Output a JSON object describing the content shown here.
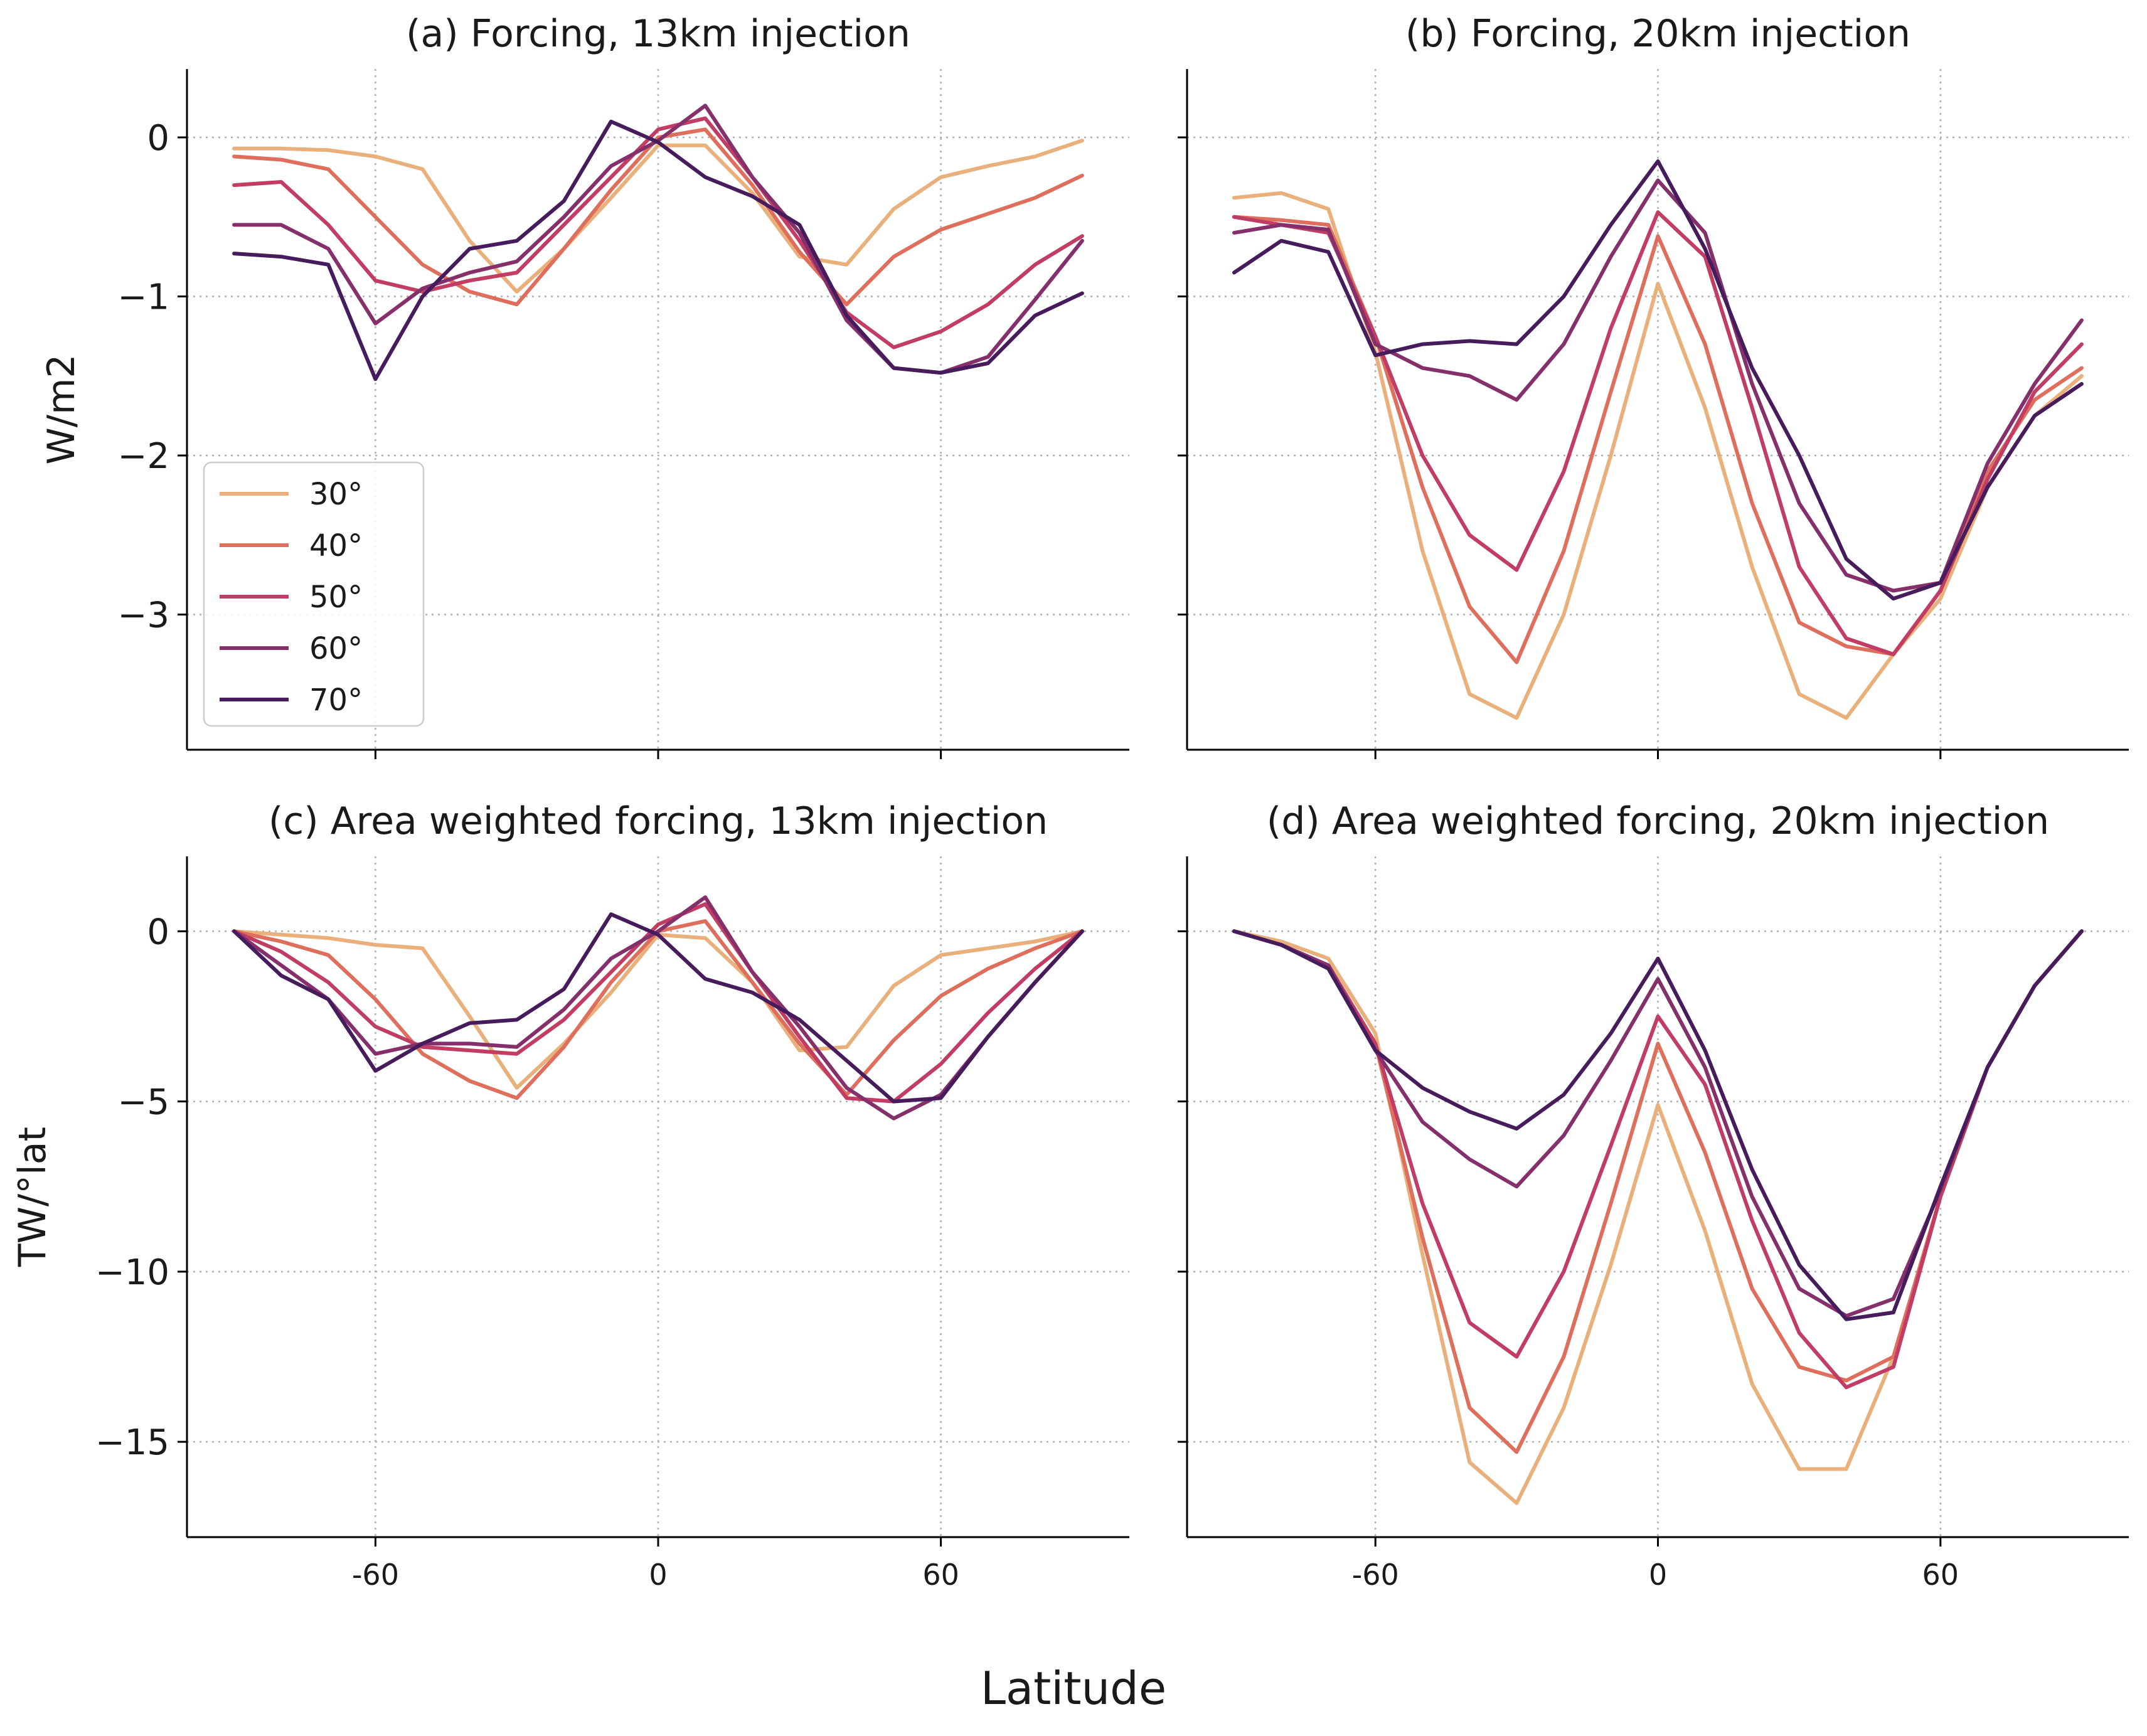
{
  "figure": {
    "xlabel": "Latitude",
    "colors": {
      "30°": "#e9b07c",
      "40°": "#de6f5c",
      "50°": "#c13d63",
      "60°": "#85306b",
      "70°": "#461c5c"
    },
    "legend_location": "lower-left of panel (a)"
  },
  "chart_data": [
    {
      "type": "line",
      "title": "(a) Forcing, 13km injection",
      "xlabel": "",
      "ylabel": "W/m2",
      "xlim": [
        -100,
        100
      ],
      "ylim": [
        -3.85,
        0.43
      ],
      "xticks": [
        -60,
        0,
        60
      ],
      "xtick_labels": [
        "-60",
        "0",
        "60"
      ],
      "yticks": [
        0,
        -1,
        -2,
        -3
      ],
      "ytick_labels": [
        "0",
        "−1",
        "−2",
        "−3"
      ],
      "show_xtick_labels": false,
      "show_ytick_labels": true,
      "grid": true,
      "legend": true,
      "x": [
        -90,
        -80,
        -70,
        -60,
        -50,
        -40,
        -30,
        -20,
        -10,
        0,
        10,
        20,
        30,
        40,
        50,
        60,
        70,
        80,
        90
      ],
      "series": [
        {
          "name": "30°",
          "color": "#e9b07c",
          "values": [
            -0.07,
            -0.07,
            -0.08,
            -0.12,
            -0.2,
            -0.65,
            -0.97,
            -0.7,
            -0.38,
            -0.05,
            -0.05,
            -0.35,
            -0.75,
            -0.8,
            -0.45,
            -0.25,
            -0.18,
            -0.12,
            -0.02
          ]
        },
        {
          "name": "40°",
          "color": "#de6f5c",
          "values": [
            -0.12,
            -0.14,
            -0.2,
            -0.5,
            -0.8,
            -0.97,
            -1.05,
            -0.7,
            -0.33,
            0.0,
            0.05,
            -0.3,
            -0.72,
            -1.05,
            -0.75,
            -0.58,
            -0.48,
            -0.38,
            -0.24
          ]
        },
        {
          "name": "50°",
          "color": "#c13d63",
          "values": [
            -0.3,
            -0.28,
            -0.55,
            -0.9,
            -0.97,
            -0.9,
            -0.85,
            -0.55,
            -0.25,
            0.05,
            0.12,
            -0.25,
            -0.65,
            -1.1,
            -1.32,
            -1.22,
            -1.05,
            -0.8,
            -0.62
          ]
        },
        {
          "name": "60°",
          "color": "#85306b",
          "values": [
            -0.55,
            -0.55,
            -0.7,
            -1.17,
            -0.95,
            -0.85,
            -0.78,
            -0.5,
            -0.18,
            -0.02,
            0.2,
            -0.25,
            -0.6,
            -1.15,
            -1.45,
            -1.48,
            -1.38,
            -1.02,
            -0.65
          ]
        },
        {
          "name": "70°",
          "color": "#461c5c",
          "values": [
            -0.73,
            -0.75,
            -0.8,
            -1.52,
            -1.0,
            -0.7,
            -0.65,
            -0.4,
            0.1,
            -0.03,
            -0.25,
            -0.37,
            -0.55,
            -1.12,
            -1.45,
            -1.48,
            -1.42,
            -1.12,
            -0.98
          ]
        }
      ]
    },
    {
      "type": "line",
      "title": "(b) Forcing, 20km injection",
      "xlabel": "",
      "ylabel": "",
      "xlim": [
        -100,
        100
      ],
      "ylim": [
        -3.85,
        0.43
      ],
      "xticks": [
        -60,
        0,
        60
      ],
      "xtick_labels": [
        "-60",
        "0",
        "60"
      ],
      "yticks": [
        0,
        -1,
        -2,
        -3
      ],
      "ytick_labels": [
        "0",
        "−1",
        "−2",
        "−3"
      ],
      "show_xtick_labels": false,
      "show_ytick_labels": false,
      "grid": true,
      "legend": false,
      "x": [
        -90,
        -80,
        -70,
        -60,
        -50,
        -40,
        -30,
        -20,
        -10,
        0,
        10,
        20,
        30,
        40,
        50,
        60,
        70,
        80,
        90
      ],
      "series": [
        {
          "name": "30°",
          "color": "#e9b07c",
          "values": [
            -0.38,
            -0.35,
            -0.45,
            -1.35,
            -2.6,
            -3.5,
            -3.65,
            -3.0,
            -2.0,
            -0.92,
            -1.7,
            -2.7,
            -3.5,
            -3.65,
            -3.25,
            -2.9,
            -2.2,
            -1.75,
            -1.5
          ]
        },
        {
          "name": "40°",
          "color": "#de6f5c",
          "values": [
            -0.5,
            -0.52,
            -0.55,
            -1.25,
            -2.2,
            -2.95,
            -3.3,
            -2.6,
            -1.6,
            -0.62,
            -1.3,
            -2.3,
            -3.05,
            -3.2,
            -3.25,
            -2.85,
            -2.1,
            -1.65,
            -1.45
          ]
        },
        {
          "name": "50°",
          "color": "#c13d63",
          "values": [
            -0.5,
            -0.55,
            -0.6,
            -1.25,
            -2.0,
            -2.5,
            -2.72,
            -2.1,
            -1.2,
            -0.47,
            -0.75,
            -1.7,
            -2.7,
            -3.15,
            -3.25,
            -2.85,
            -2.15,
            -1.6,
            -1.3
          ]
        },
        {
          "name": "60°",
          "color": "#85306b",
          "values": [
            -0.6,
            -0.55,
            -0.58,
            -1.3,
            -1.45,
            -1.5,
            -1.65,
            -1.3,
            -0.75,
            -0.27,
            -0.6,
            -1.55,
            -2.3,
            -2.75,
            -2.85,
            -2.8,
            -2.05,
            -1.55,
            -1.15
          ]
        },
        {
          "name": "70°",
          "color": "#461c5c",
          "values": [
            -0.85,
            -0.65,
            -0.72,
            -1.37,
            -1.3,
            -1.28,
            -1.3,
            -1.0,
            -0.55,
            -0.15,
            -0.7,
            -1.45,
            -2.0,
            -2.65,
            -2.9,
            -2.8,
            -2.2,
            -1.75,
            -1.55
          ]
        }
      ]
    },
    {
      "type": "line",
      "title": "(c) Area weighted forcing, 13km injection",
      "xlabel": "",
      "ylabel": "TW/°lat",
      "xlim": [
        -100,
        100
      ],
      "ylim": [
        -17.8,
        2.2
      ],
      "xticks": [
        -60,
        0,
        60
      ],
      "xtick_labels": [
        "-60",
        "0",
        "60"
      ],
      "yticks": [
        0,
        -5,
        -10,
        -15
      ],
      "ytick_labels": [
        "0",
        "−5",
        "−10",
        "−15"
      ],
      "show_xtick_labels": true,
      "show_ytick_labels": true,
      "grid": true,
      "legend": false,
      "x": [
        -90,
        -80,
        -70,
        -60,
        -50,
        -40,
        -30,
        -20,
        -10,
        0,
        10,
        20,
        30,
        40,
        50,
        60,
        70,
        80,
        90
      ],
      "series": [
        {
          "name": "30°",
          "color": "#e9b07c",
          "values": [
            0.0,
            -0.1,
            -0.2,
            -0.4,
            -0.5,
            -2.5,
            -4.6,
            -3.3,
            -1.8,
            -0.1,
            -0.2,
            -1.5,
            -3.5,
            -3.4,
            -1.6,
            -0.7,
            -0.5,
            -0.3,
            0.0
          ]
        },
        {
          "name": "40°",
          "color": "#de6f5c",
          "values": [
            0.0,
            -0.3,
            -0.7,
            -2.0,
            -3.6,
            -4.4,
            -4.9,
            -3.4,
            -1.5,
            0.0,
            0.3,
            -1.5,
            -3.3,
            -4.8,
            -3.2,
            -1.9,
            -1.1,
            -0.5,
            0.0
          ]
        },
        {
          "name": "50°",
          "color": "#c13d63",
          "values": [
            0.0,
            -0.6,
            -1.5,
            -2.8,
            -3.4,
            -3.5,
            -3.6,
            -2.6,
            -1.2,
            0.2,
            0.8,
            -1.2,
            -3.1,
            -4.9,
            -5.0,
            -3.9,
            -2.4,
            -1.1,
            0.0
          ]
        },
        {
          "name": "60°",
          "color": "#85306b",
          "values": [
            0.0,
            -1.0,
            -2.0,
            -3.6,
            -3.3,
            -3.3,
            -3.4,
            -2.3,
            -0.8,
            0.0,
            1.0,
            -1.2,
            -2.8,
            -4.6,
            -5.5,
            -4.8,
            -3.1,
            -1.5,
            0.0
          ]
        },
        {
          "name": "70°",
          "color": "#461c5c",
          "values": [
            0.0,
            -1.3,
            -2.0,
            -4.1,
            -3.3,
            -2.7,
            -2.6,
            -1.7,
            0.5,
            -0.1,
            -1.4,
            -1.8,
            -2.6,
            -3.8,
            -5.0,
            -4.9,
            -3.1,
            -1.5,
            0.0
          ]
        }
      ]
    },
    {
      "type": "line",
      "title": "(d) Area weighted forcing, 20km injection",
      "xlabel": "",
      "ylabel": "",
      "xlim": [
        -100,
        100
      ],
      "ylim": [
        -17.8,
        2.2
      ],
      "xticks": [
        -60,
        0,
        60
      ],
      "xtick_labels": [
        "-60",
        "0",
        "60"
      ],
      "yticks": [
        0,
        -5,
        -10,
        -15
      ],
      "ytick_labels": [
        "0",
        "−5",
        "−10",
        "−15"
      ],
      "show_xtick_labels": true,
      "show_ytick_labels": false,
      "grid": true,
      "legend": false,
      "x": [
        -90,
        -80,
        -70,
        -60,
        -50,
        -40,
        -30,
        -20,
        -10,
        0,
        10,
        20,
        30,
        40,
        50,
        60,
        70,
        80,
        90
      ],
      "series": [
        {
          "name": "30°",
          "color": "#e9b07c",
          "values": [
            0.0,
            -0.3,
            -0.8,
            -3.0,
            -9.5,
            -15.6,
            -16.8,
            -14.0,
            -9.8,
            -5.1,
            -8.8,
            -13.3,
            -15.8,
            -15.8,
            -12.5,
            -7.8,
            -4.0,
            -1.6,
            0.0
          ]
        },
        {
          "name": "40°",
          "color": "#de6f5c",
          "values": [
            0.0,
            -0.4,
            -1.0,
            -3.3,
            -9.0,
            -14.0,
            -15.3,
            -12.5,
            -8.0,
            -3.3,
            -6.5,
            -10.5,
            -12.8,
            -13.2,
            -12.5,
            -7.8,
            -4.0,
            -1.6,
            0.0
          ]
        },
        {
          "name": "50°",
          "color": "#c13d63",
          "values": [
            0.0,
            -0.4,
            -1.0,
            -3.3,
            -8.0,
            -11.5,
            -12.5,
            -10.0,
            -6.3,
            -2.5,
            -4.5,
            -8.5,
            -11.8,
            -13.4,
            -12.8,
            -7.8,
            -4.0,
            -1.6,
            0.0
          ]
        },
        {
          "name": "60°",
          "color": "#85306b",
          "values": [
            0.0,
            -0.4,
            -1.0,
            -3.5,
            -5.6,
            -6.7,
            -7.5,
            -6.0,
            -3.8,
            -1.4,
            -4.0,
            -7.8,
            -10.5,
            -11.3,
            -10.8,
            -7.6,
            -4.0,
            -1.6,
            0.0
          ]
        },
        {
          "name": "70°",
          "color": "#461c5c",
          "values": [
            0.0,
            -0.4,
            -1.1,
            -3.5,
            -4.6,
            -5.3,
            -5.8,
            -4.8,
            -3.0,
            -0.8,
            -3.5,
            -7.0,
            -9.8,
            -11.4,
            -11.2,
            -7.5,
            -4.0,
            -1.6,
            0.0
          ]
        }
      ]
    }
  ]
}
